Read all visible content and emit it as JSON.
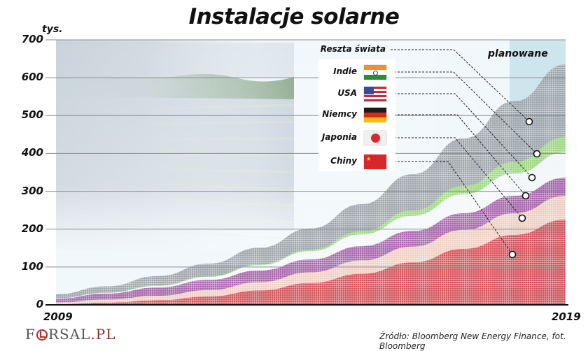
{
  "header": {
    "title": "Instalacje solarne",
    "unit": "tys."
  },
  "axes": {
    "y_ticks": [
      "700",
      "600",
      "500",
      "400",
      "300",
      "200",
      "100",
      "0"
    ],
    "x_start": "2009",
    "x_end": "2019"
  },
  "annotations": {
    "planned_label": "planowane"
  },
  "legend": [
    {
      "label": "Reszta świata",
      "color": "#8e969b",
      "flag": "none"
    },
    {
      "label": "Indie",
      "color": "#8fd46a",
      "flag": "india-flag"
    },
    {
      "label": "USA",
      "color": "#f3f6f8",
      "flag": "usa-flag"
    },
    {
      "label": "Niemcy",
      "color": "#9a4a9c",
      "flag": "germany-flag"
    },
    {
      "label": "Japonia",
      "color": "#f0c8b8",
      "flag": "japan-flag"
    },
    {
      "label": "Chiny",
      "color": "#d0343c",
      "flag": "china-flag"
    }
  ],
  "footer": {
    "source": "Źródło: Bloomberg New Energy Finance, fot. Bloomberg",
    "logo_prefix": "F",
    "logo_suffix": "RSAL",
    "logo_domain": ".PL"
  },
  "chart_data": {
    "type": "area",
    "stacked": true,
    "title": "Instalacje solarne",
    "ylabel": "tys.",
    "xlabel": "",
    "ylim": [
      0,
      700
    ],
    "y_ticks": [
      0,
      100,
      200,
      300,
      400,
      500,
      600,
      700
    ],
    "x": [
      2009,
      2010,
      2011,
      2012,
      2013,
      2014,
      2015,
      2016,
      2017,
      2018,
      2019
    ],
    "x_tick_labels": [
      "2009",
      "2019"
    ],
    "grid": true,
    "planned_region": {
      "from": 2017.9,
      "to": 2019,
      "label": "planowane"
    },
    "series": [
      {
        "name": "Chiny",
        "color": "#d0343c",
        "values": [
          2,
          6,
          12,
          22,
          38,
          58,
          82,
          112,
          148,
          185,
          225
        ]
      },
      {
        "name": "Japonia",
        "color": "#f0c8b8",
        "values": [
          4,
          8,
          12,
          17,
          22,
          28,
          35,
          42,
          50,
          57,
          63
        ]
      },
      {
        "name": "Niemcy",
        "color": "#9a4a9c",
        "values": [
          10,
          16,
          22,
          27,
          31,
          34,
          38,
          41,
          44,
          46,
          48
        ]
      },
      {
        "name": "USA",
        "color": "#f3f6f8",
        "values": [
          1,
          2,
          4,
          8,
          14,
          22,
          31,
          40,
          50,
          59,
          67
        ]
      },
      {
        "name": "Indie",
        "color": "#8fd46a",
        "values": [
          0,
          0,
          1,
          1,
          2,
          4,
          8,
          14,
          22,
          31,
          40
        ]
      },
      {
        "name": "Reszta świata",
        "color": "#8e969b",
        "values": [
          11,
          17,
          25,
          34,
          44,
          56,
          72,
          96,
          126,
          160,
          192
        ]
      }
    ],
    "annotations": [
      "planowane",
      "Źródło: Bloomberg New Energy Finance, fot. Bloomberg"
    ],
    "legend_position": "inside-top-right"
  }
}
